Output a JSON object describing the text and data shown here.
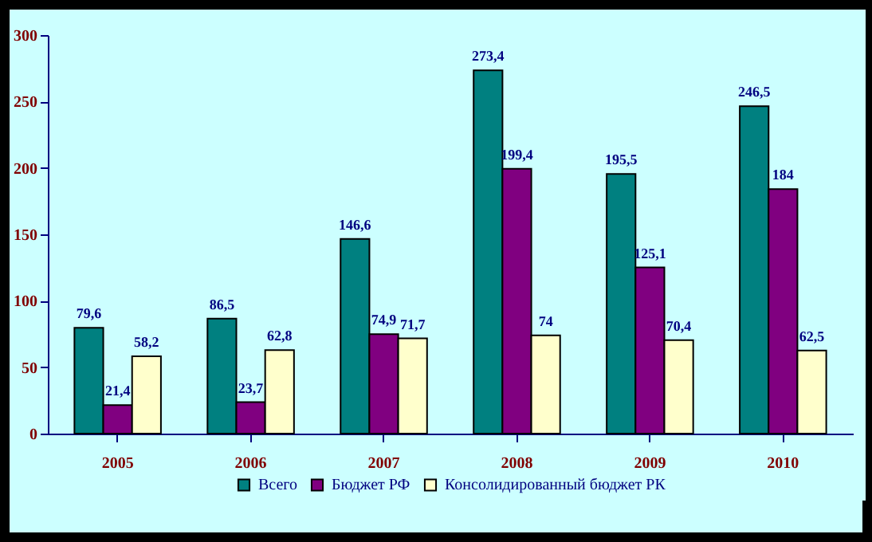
{
  "chart_data": {
    "type": "bar",
    "categories": [
      "2005",
      "2006",
      "2007",
      "2008",
      "2009",
      "2010"
    ],
    "series": [
      {
        "name": "Всего",
        "color": "#008080",
        "values": [
          79.6,
          86.5,
          146.6,
          273.4,
          195.5,
          246.5
        ],
        "value_labels": [
          "79,6",
          "86,5",
          "146,6",
          "273,4",
          "195,5",
          "246,5"
        ]
      },
      {
        "name": "Бюджет РФ",
        "color": "#800080",
        "values": [
          21.4,
          23.7,
          74.9,
          199.4,
          125.1,
          184
        ],
        "value_labels": [
          "21,4",
          "23,7",
          "74,9",
          "199,4",
          "125,1",
          "184"
        ]
      },
      {
        "name": "Консолидированный бюджет РК",
        "color": "#ffffcc",
        "values": [
          58.2,
          62.8,
          71.7,
          74,
          70.4,
          62.5
        ],
        "value_labels": [
          "58,2",
          "62,8",
          "71,7",
          "74",
          "70,4",
          "62,5"
        ]
      }
    ],
    "ylim": [
      0,
      300
    ],
    "yticks": [
      0,
      50,
      100,
      150,
      200,
      250,
      300
    ],
    "grid": false,
    "legend": "bottom"
  }
}
